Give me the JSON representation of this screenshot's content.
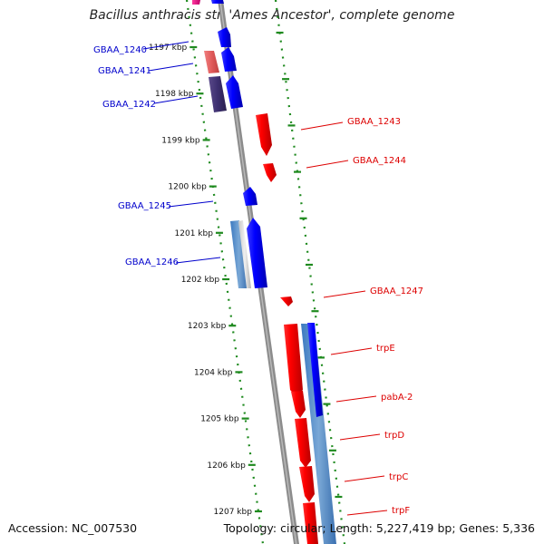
{
  "title": "Bacillus anthracis str. 'Ames Ancestor', complete genome",
  "footer": {
    "accession": "Accession: NC_007530",
    "summary": "Topology: circular; Length: 5,227,419 bp; Genes: 5,336"
  },
  "colors": {
    "backbone": "#8c8c8c",
    "tick": "#1f8a1f",
    "forward_label": "#0000cc",
    "reverse_label": "#dd0000"
  },
  "ticks": [
    {
      "label": "1197 kbp"
    },
    {
      "label": "1198 kbp"
    },
    {
      "label": "1199 kbp"
    },
    {
      "label": "1200 kbp"
    },
    {
      "label": "1201 kbp"
    },
    {
      "label": "1202 kbp"
    },
    {
      "label": "1203 kbp"
    },
    {
      "label": "1204 kbp"
    },
    {
      "label": "1205 kbp"
    },
    {
      "label": "1206 kbp"
    },
    {
      "label": "1207 kbp"
    }
  ],
  "genes": [
    {
      "label": "GBAA_1240",
      "strand": "forward"
    },
    {
      "label": "GBAA_1241",
      "strand": "forward"
    },
    {
      "label": "GBAA_1242",
      "strand": "forward"
    },
    {
      "label": "GBAA_1243",
      "strand": "reverse"
    },
    {
      "label": "GBAA_1244",
      "strand": "reverse"
    },
    {
      "label": "GBAA_1245",
      "strand": "forward"
    },
    {
      "label": "GBAA_1246",
      "strand": "forward"
    },
    {
      "label": "GBAA_1247",
      "strand": "reverse"
    },
    {
      "label": "trpE",
      "strand": "reverse"
    },
    {
      "label": "pabA-2",
      "strand": "reverse"
    },
    {
      "label": "trpD",
      "strand": "reverse"
    },
    {
      "label": "trpC",
      "strand": "reverse"
    },
    {
      "label": "trpF",
      "strand": "reverse"
    }
  ]
}
